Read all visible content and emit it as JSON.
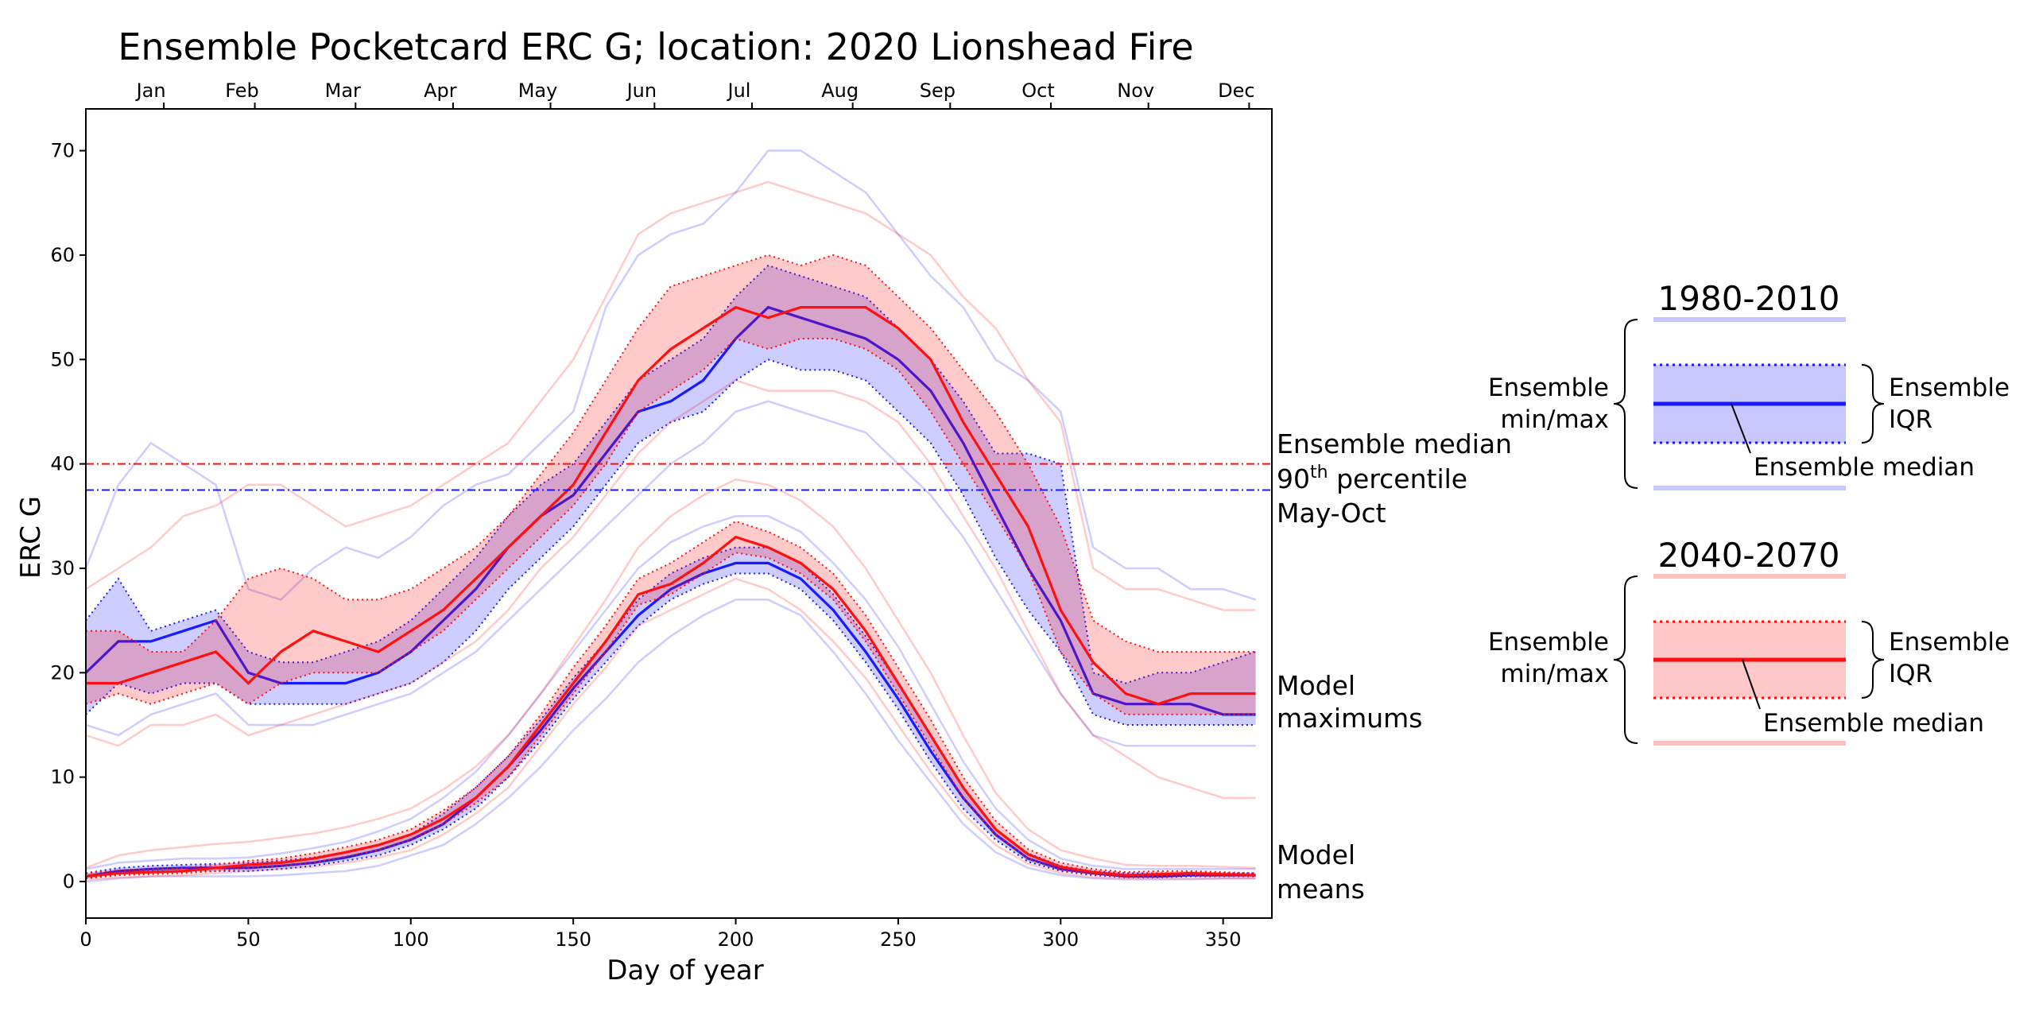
{
  "chart_data": {
    "type": "line",
    "title": "Ensemble Pocketcard ERC G; location: 2020 Lionshead Fire",
    "xlabel": "Day of year",
    "ylabel": "ERC G",
    "xlim": [
      0,
      365
    ],
    "ylim": [
      -3.5,
      74
    ],
    "x_ticks": [
      0,
      50,
      100,
      150,
      200,
      250,
      300,
      350
    ],
    "y_ticks": [
      0,
      10,
      20,
      30,
      40,
      50,
      60,
      70
    ],
    "top_axis": {
      "months": [
        "Jan",
        "Feb",
        "Mar",
        "Apr",
        "May",
        "Jun",
        "Jul",
        "Aug",
        "Sep",
        "Oct",
        "Nov",
        "Dec"
      ],
      "month_centers": [
        24,
        52,
        83,
        113,
        143,
        175,
        205,
        236,
        266,
        297,
        327,
        358
      ]
    },
    "colors": {
      "historical": "#1a1aff",
      "future": "#ff0f0f"
    },
    "reference_lines": [
      {
        "period": "2040-2070",
        "y": 40.0,
        "style": "dashdot",
        "color": "#ff0f0f"
      },
      {
        "period": "1980-2010",
        "y": 37.5,
        "style": "dashdot",
        "color": "#1a1aff"
      }
    ],
    "annotations": {
      "percentile": [
        "Ensemble median",
        "90",
        "th",
        " percentile",
        "May-Oct"
      ],
      "maximums": [
        "Model",
        "maximums"
      ],
      "means": [
        "Model",
        "means"
      ]
    },
    "series": [
      {
        "name": "1980-2010 model maximums",
        "period": "1980-2010",
        "kind": "maximums",
        "x": [
          0,
          10,
          20,
          30,
          40,
          50,
          60,
          70,
          80,
          90,
          100,
          110,
          120,
          130,
          140,
          150,
          160,
          170,
          180,
          190,
          200,
          210,
          220,
          230,
          240,
          250,
          260,
          270,
          280,
          290,
          300,
          310,
          320,
          330,
          340,
          350,
          360
        ],
        "median": [
          20,
          23,
          23,
          24,
          25,
          20,
          19,
          19,
          19,
          20,
          22,
          25,
          28,
          32,
          35,
          37,
          41,
          45,
          46,
          48,
          52,
          55,
          54,
          53,
          52,
          50,
          47,
          42,
          36,
          30,
          25,
          18,
          17,
          17,
          17,
          16,
          16
        ],
        "q25": [
          16,
          19,
          18,
          19,
          19,
          17,
          17,
          17,
          17,
          18,
          19,
          21,
          24,
          28,
          31,
          34,
          38,
          42,
          44,
          45,
          48,
          50,
          49,
          49,
          48,
          45,
          42,
          37,
          31,
          26,
          22,
          16,
          15,
          15,
          15,
          15,
          15
        ],
        "q75": [
          25,
          29,
          24,
          25,
          26,
          22,
          21,
          21,
          22,
          23,
          25,
          28,
          31,
          35,
          38,
          40,
          44,
          48,
          50,
          52,
          56,
          59,
          58,
          57,
          56,
          53,
          50,
          46,
          41,
          41,
          40,
          20,
          19,
          20,
          20,
          21,
          22
        ],
        "min": [
          15,
          14,
          16,
          17,
          18,
          15,
          15,
          15,
          16,
          17,
          18,
          20,
          22,
          25,
          28,
          31,
          34,
          37,
          40,
          42,
          45,
          46,
          45,
          44,
          43,
          40,
          37,
          33,
          28,
          23,
          18,
          14,
          13,
          13,
          13,
          13,
          13
        ],
        "max": [
          30,
          38,
          42,
          40,
          38,
          28,
          27,
          30,
          32,
          31,
          33,
          36,
          38,
          39,
          42,
          45,
          55,
          60,
          62,
          63,
          66,
          70,
          70,
          68,
          66,
          62,
          58,
          55,
          50,
          48,
          45,
          32,
          30,
          30,
          28,
          28,
          27
        ]
      },
      {
        "name": "2040-2070 model maximums",
        "period": "2040-2070",
        "kind": "maximums",
        "x": [
          0,
          10,
          20,
          30,
          40,
          50,
          60,
          70,
          80,
          90,
          100,
          110,
          120,
          130,
          140,
          150,
          160,
          170,
          180,
          190,
          200,
          210,
          220,
          230,
          240,
          250,
          260,
          270,
          280,
          290,
          300,
          310,
          320,
          330,
          340,
          350,
          360
        ],
        "median": [
          19,
          19,
          20,
          21,
          22,
          19,
          22,
          24,
          23,
          22,
          24,
          26,
          29,
          32,
          35,
          38,
          43,
          48,
          51,
          53,
          55,
          54,
          55,
          55,
          55,
          53,
          50,
          44,
          39,
          34,
          26,
          21,
          18,
          17,
          18,
          18,
          18
        ],
        "q25": [
          17,
          18,
          17,
          18,
          19,
          17,
          19,
          20,
          20,
          20,
          22,
          24,
          27,
          30,
          33,
          36,
          40,
          45,
          47,
          49,
          52,
          51,
          52,
          52,
          51,
          49,
          45,
          40,
          35,
          30,
          22,
          18,
          16,
          16,
          16,
          16,
          16
        ],
        "q75": [
          24,
          24,
          22,
          22,
          25,
          29,
          30,
          29,
          27,
          27,
          28,
          30,
          32,
          35,
          39,
          43,
          48,
          53,
          57,
          58,
          59,
          60,
          59,
          60,
          59,
          56,
          53,
          49,
          45,
          40,
          34,
          25,
          23,
          22,
          22,
          22,
          22
        ],
        "min": [
          14,
          13,
          15,
          15,
          16,
          14,
          15,
          16,
          17,
          18,
          19,
          21,
          23,
          26,
          30,
          33,
          37,
          41,
          44,
          46,
          48,
          47,
          47,
          47,
          46,
          44,
          40,
          35,
          30,
          24,
          18,
          14,
          12,
          10,
          9,
          8,
          8
        ],
        "max": [
          28,
          30,
          32,
          35,
          36,
          38,
          38,
          36,
          34,
          35,
          36,
          38,
          40,
          42,
          46,
          50,
          56,
          62,
          64,
          65,
          66,
          67,
          66,
          65,
          64,
          62,
          60,
          56,
          53,
          48,
          44,
          30,
          28,
          28,
          27,
          26,
          26
        ]
      },
      {
        "name": "1980-2010 model means",
        "period": "1980-2010",
        "kind": "means",
        "x": [
          0,
          10,
          20,
          30,
          40,
          50,
          60,
          70,
          80,
          90,
          100,
          110,
          120,
          130,
          140,
          150,
          160,
          170,
          180,
          190,
          200,
          210,
          220,
          230,
          240,
          250,
          260,
          270,
          280,
          290,
          300,
          310,
          320,
          330,
          340,
          350,
          360
        ],
        "median": [
          0.5,
          1,
          1.2,
          1.3,
          1.3,
          1.3,
          1.5,
          1.8,
          2.3,
          3,
          4,
          5.5,
          8,
          11,
          14.5,
          18.5,
          22,
          25.5,
          28,
          29.5,
          30.5,
          30.5,
          29,
          26,
          22,
          17.5,
          12.5,
          8,
          4.5,
          2.2,
          1.2,
          0.8,
          0.5,
          0.5,
          0.6,
          0.6,
          0.6
        ],
        "q25": [
          0.3,
          0.8,
          1,
          1,
          1,
          1,
          1.2,
          1.5,
          2,
          2.5,
          3.5,
          5,
          7,
          10,
          13.5,
          17.5,
          21,
          24.5,
          27,
          28.5,
          29.5,
          29.5,
          28,
          25,
          21,
          16.5,
          11.5,
          7,
          4,
          1.9,
          1,
          0.6,
          0.4,
          0.4,
          0.5,
          0.5,
          0.5
        ],
        "q75": [
          0.8,
          1.3,
          1.5,
          1.6,
          1.7,
          1.8,
          2,
          2.3,
          2.8,
          3.5,
          4.5,
          6.5,
          9,
          12,
          15.5,
          19.5,
          23,
          27,
          29.5,
          31,
          32,
          32,
          30.5,
          27.5,
          23.5,
          19,
          14,
          9,
          5,
          2.7,
          1.5,
          1,
          0.8,
          0.8,
          0.8,
          0.8,
          0.8
        ],
        "min": [
          0,
          0.3,
          0.5,
          0.5,
          0.5,
          0.5,
          0.6,
          0.8,
          1,
          1.5,
          2.5,
          3.5,
          5.5,
          8,
          11,
          14.5,
          17.5,
          21,
          23.5,
          25.5,
          27,
          27,
          25.5,
          22,
          18,
          13.5,
          9.5,
          5.5,
          2.8,
          1.3,
          0.6,
          0.3,
          0.2,
          0.2,
          0.2,
          0.3,
          0.3
        ],
        "max": [
          1.2,
          1.8,
          2,
          2.2,
          2.2,
          2.3,
          2.7,
          3.2,
          3.8,
          4.8,
          6,
          8,
          10.5,
          14,
          18,
          22,
          26,
          30,
          32.5,
          34,
          35,
          35,
          33.5,
          30.5,
          27,
          22.5,
          17,
          11.5,
          7,
          4,
          2.2,
          1.5,
          1.2,
          1.2,
          1.2,
          1.2,
          1.2
        ]
      },
      {
        "name": "2040-2070 model means",
        "period": "2040-2070",
        "kind": "means",
        "x": [
          0,
          10,
          20,
          30,
          40,
          50,
          60,
          70,
          80,
          90,
          100,
          110,
          120,
          130,
          140,
          150,
          160,
          170,
          180,
          190,
          200,
          210,
          220,
          230,
          240,
          250,
          260,
          270,
          280,
          290,
          300,
          310,
          320,
          330,
          340,
          350,
          360
        ],
        "median": [
          0.5,
          0.8,
          0.9,
          1,
          1.3,
          1.6,
          1.8,
          2.2,
          2.8,
          3.5,
          4.5,
          6,
          8,
          11,
          15,
          19,
          23,
          27.5,
          28.5,
          30.5,
          33,
          32,
          30.5,
          28,
          24,
          19,
          14,
          9,
          5,
          2.6,
          1.4,
          0.9,
          0.6,
          0.7,
          0.8,
          0.7,
          0.6
        ],
        "q25": [
          0.3,
          0.6,
          0.7,
          0.8,
          1,
          1.3,
          1.5,
          1.8,
          2.4,
          3,
          4,
          5.5,
          7.5,
          10,
          14,
          18,
          22,
          26.5,
          27.5,
          29.5,
          31.5,
          31,
          29.5,
          27,
          23,
          18,
          13,
          8,
          4.5,
          2.2,
          1.1,
          0.7,
          0.4,
          0.5,
          0.6,
          0.5,
          0.5
        ],
        "q75": [
          0.8,
          1.1,
          1.2,
          1.3,
          1.6,
          2,
          2.2,
          2.7,
          3.3,
          4,
          5,
          6.8,
          9,
          12,
          16,
          20.5,
          24.5,
          29,
          30.5,
          32.5,
          34.5,
          33.5,
          32,
          29.5,
          25.5,
          20.5,
          15.5,
          10,
          5.8,
          3.1,
          1.8,
          1.2,
          0.9,
          1,
          1,
          0.9,
          0.8
        ],
        "min": [
          0.2,
          0.4,
          0.5,
          0.6,
          0.8,
          1,
          1.2,
          1.4,
          1.8,
          2.3,
          3,
          4.5,
          6.5,
          9,
          13,
          17,
          20.5,
          24.5,
          26,
          27.5,
          29,
          28,
          26,
          23,
          19.5,
          15,
          10.5,
          6.5,
          3.5,
          1.7,
          0.8,
          0.4,
          0.3,
          0.3,
          0.3,
          0.3,
          0.3
        ],
        "max": [
          1.3,
          2.5,
          3,
          3.3,
          3.6,
          3.8,
          4.2,
          4.6,
          5.2,
          6,
          7,
          8.8,
          11,
          14,
          18,
          22.5,
          27,
          32,
          35,
          37,
          38.5,
          38,
          36.5,
          34,
          30,
          25,
          20,
          14,
          8.5,
          5,
          3,
          2.2,
          1.6,
          1.5,
          1.5,
          1.4,
          1.3
        ]
      }
    ]
  },
  "legend": {
    "periods": [
      {
        "title": "1980-2010",
        "color": "#1a1aff",
        "light": "#c8c8ff",
        "left_label": [
          "Ensemble",
          "min/max"
        ],
        "right_label": [
          "Ensemble",
          "IQR"
        ],
        "median_label": "Ensemble median"
      },
      {
        "title": "2040-2070",
        "color": "#ff0f0f",
        "light": "#ffc0c0",
        "left_label": [
          "Ensemble",
          "min/max"
        ],
        "right_label": [
          "Ensemble",
          "IQR"
        ],
        "median_label": "Ensemble median"
      }
    ]
  }
}
